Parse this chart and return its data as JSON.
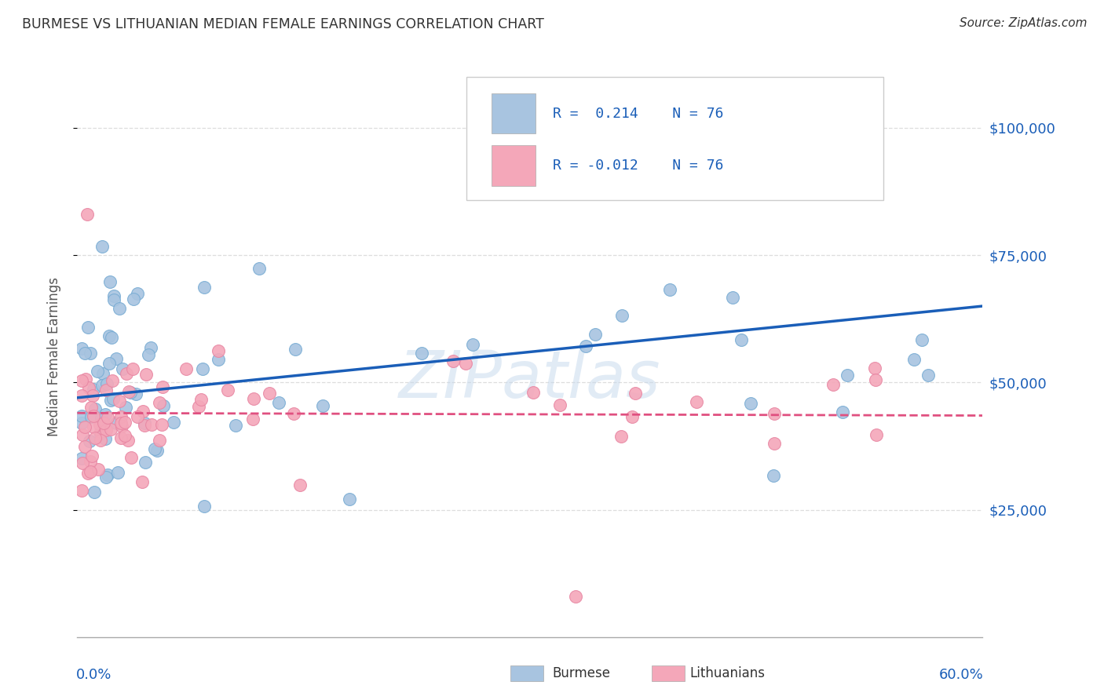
{
  "title": "BURMESE VS LITHUANIAN MEDIAN FEMALE EARNINGS CORRELATION CHART",
  "source": "Source: ZipAtlas.com",
  "ylabel": "Median Female Earnings",
  "ytick_values": [
    25000,
    50000,
    75000,
    100000
  ],
  "ylim": [
    0,
    110000
  ],
  "xlim": [
    0.0,
    0.6
  ],
  "burmese_R": "0.214",
  "lithuanian_R": "-0.012",
  "N": "76",
  "burmese_color": "#a8c4e0",
  "burmese_edge_color": "#7aadd4",
  "burmese_line_color": "#1a5eb8",
  "lithuanian_color": "#f4a7b9",
  "lithuanian_edge_color": "#e888a4",
  "lithuanian_line_color": "#e05080",
  "watermark": "ZIPatlas",
  "legend_label_burmese": "Burmese",
  "legend_label_lithuanian": "Lithuanians",
  "bg_color": "#ffffff",
  "grid_color": "#dddddd",
  "spine_color": "#aaaaaa",
  "title_color": "#333333",
  "axis_label_color": "#555555",
  "right_tick_color": "#1a5eb8"
}
